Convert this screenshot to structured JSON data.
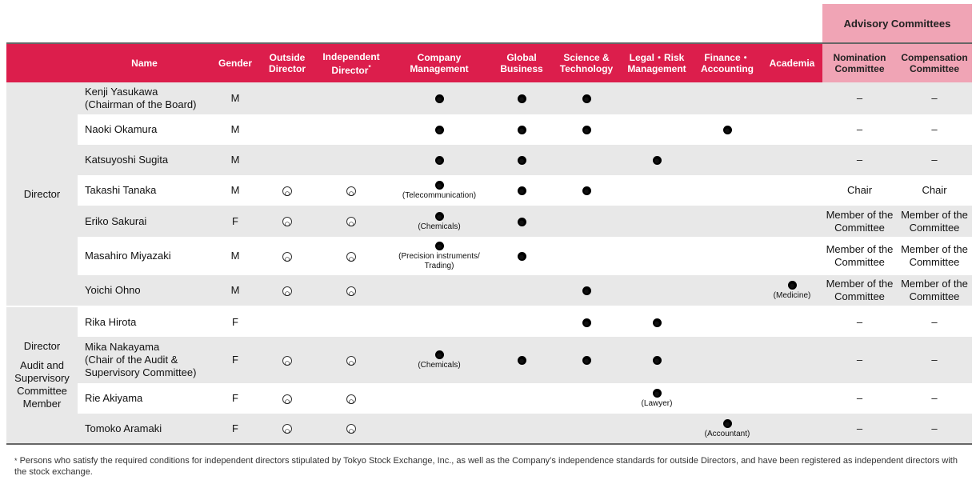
{
  "advisory_title": "Advisory Committees",
  "headers": {
    "name": "Name",
    "gender": "Gender",
    "outside_director": "Outside Director",
    "independent_director": "Independent Director",
    "independent_mark": "*",
    "company_management": "Company Management",
    "global_business": "Global Business",
    "science_technology": "Science & Technology",
    "legal_risk": "Legal・Risk Management",
    "finance_accounting": "Finance・Accounting",
    "academia": "Academia",
    "nomination": "Nomination Committee",
    "compensation": "Compensation Committee"
  },
  "categories": {
    "director": "Director",
    "audit_line1": "Director",
    "audit_line2": "Audit and Supervisory Committee Member"
  },
  "symbols": {
    "dot": "●",
    "circle": "○",
    "dash": "–"
  },
  "rows": [
    {
      "name1": "Kenji Yasukawa",
      "name2": "(Chairman of the Board)",
      "gender": "M",
      "outside": false,
      "independent": false,
      "company": {
        "mark": true,
        "note": ""
      },
      "global": true,
      "science": true,
      "legal": {
        "mark": false,
        "note": ""
      },
      "finance": {
        "mark": false,
        "note": ""
      },
      "academia": {
        "mark": false,
        "note": ""
      },
      "nomination": "–",
      "compensation": "–"
    },
    {
      "name1": "Naoki Okamura",
      "gender": "M",
      "outside": false,
      "independent": false,
      "company": {
        "mark": true,
        "note": ""
      },
      "global": true,
      "science": true,
      "legal": {
        "mark": false,
        "note": ""
      },
      "finance": {
        "mark": true,
        "note": ""
      },
      "academia": {
        "mark": false,
        "note": ""
      },
      "nomination": "–",
      "compensation": "–"
    },
    {
      "name1": "Katsuyoshi Sugita",
      "gender": "M",
      "outside": false,
      "independent": false,
      "company": {
        "mark": true,
        "note": ""
      },
      "global": true,
      "science": false,
      "legal": {
        "mark": true,
        "note": ""
      },
      "finance": {
        "mark": false,
        "note": ""
      },
      "academia": {
        "mark": false,
        "note": ""
      },
      "nomination": "–",
      "compensation": "–"
    },
    {
      "name1": "Takashi Tanaka",
      "gender": "M",
      "outside": true,
      "independent": true,
      "company": {
        "mark": true,
        "note": "(Telecommunication)"
      },
      "global": true,
      "science": true,
      "legal": {
        "mark": false,
        "note": ""
      },
      "finance": {
        "mark": false,
        "note": ""
      },
      "academia": {
        "mark": false,
        "note": ""
      },
      "nomination": "Chair",
      "compensation": "Chair"
    },
    {
      "name1": "Eriko Sakurai",
      "gender": "F",
      "outside": true,
      "independent": true,
      "company": {
        "mark": true,
        "note": "(Chemicals)"
      },
      "global": true,
      "science": false,
      "legal": {
        "mark": false,
        "note": ""
      },
      "finance": {
        "mark": false,
        "note": ""
      },
      "academia": {
        "mark": false,
        "note": ""
      },
      "nomination": "Member of the Committee",
      "compensation": "Member of the Committee"
    },
    {
      "name1": "Masahiro Miyazaki",
      "gender": "M",
      "outside": true,
      "independent": true,
      "company": {
        "mark": true,
        "note": "(Precision instruments/ Trading)"
      },
      "global": true,
      "science": false,
      "legal": {
        "mark": false,
        "note": ""
      },
      "finance": {
        "mark": false,
        "note": ""
      },
      "academia": {
        "mark": false,
        "note": ""
      },
      "nomination": "Member of the Committee",
      "compensation": "Member of the Committee"
    },
    {
      "name1": "Yoichi Ohno",
      "gender": "M",
      "outside": true,
      "independent": true,
      "company": {
        "mark": false,
        "note": ""
      },
      "global": false,
      "science": true,
      "legal": {
        "mark": false,
        "note": ""
      },
      "finance": {
        "mark": false,
        "note": ""
      },
      "academia": {
        "mark": true,
        "note": "(Medicine)"
      },
      "nomination": "Member of the Committee",
      "compensation": "Member of the Committee"
    },
    {
      "name1": "Rika Hirota",
      "gender": "F",
      "outside": false,
      "independent": false,
      "company": {
        "mark": false,
        "note": ""
      },
      "global": false,
      "science": true,
      "legal": {
        "mark": true,
        "note": ""
      },
      "finance": {
        "mark": false,
        "note": ""
      },
      "academia": {
        "mark": false,
        "note": ""
      },
      "nomination": "–",
      "compensation": "–"
    },
    {
      "name1": "Mika Nakayama",
      "name2": "(Chair of the Audit & Supervisory Committee)",
      "gender": "F",
      "outside": true,
      "independent": true,
      "company": {
        "mark": true,
        "note": "(Chemicals)"
      },
      "global": true,
      "science": true,
      "legal": {
        "mark": true,
        "note": ""
      },
      "finance": {
        "mark": false,
        "note": ""
      },
      "academia": {
        "mark": false,
        "note": ""
      },
      "nomination": "–",
      "compensation": "–"
    },
    {
      "name1": "Rie Akiyama",
      "gender": "F",
      "outside": true,
      "independent": true,
      "company": {
        "mark": false,
        "note": ""
      },
      "global": false,
      "science": false,
      "legal": {
        "mark": true,
        "note": "(Lawyer)"
      },
      "finance": {
        "mark": false,
        "note": ""
      },
      "academia": {
        "mark": false,
        "note": ""
      },
      "nomination": "–",
      "compensation": "–"
    },
    {
      "name1": "Tomoko Aramaki",
      "gender": "F",
      "outside": true,
      "independent": true,
      "company": {
        "mark": false,
        "note": ""
      },
      "global": false,
      "science": false,
      "legal": {
        "mark": false,
        "note": ""
      },
      "finance": {
        "mark": true,
        "note": "(Accountant)"
      },
      "academia": {
        "mark": false,
        "note": ""
      },
      "nomination": "–",
      "compensation": "–"
    }
  ],
  "footnote_mark": "*",
  "footnote": "Persons who satisfy the required conditions for independent directors stipulated by Tokyo Stock Exchange, Inc., as well as the Company’s independence standards for outside Directors, and have been registered as independent directors with the stock exchange."
}
